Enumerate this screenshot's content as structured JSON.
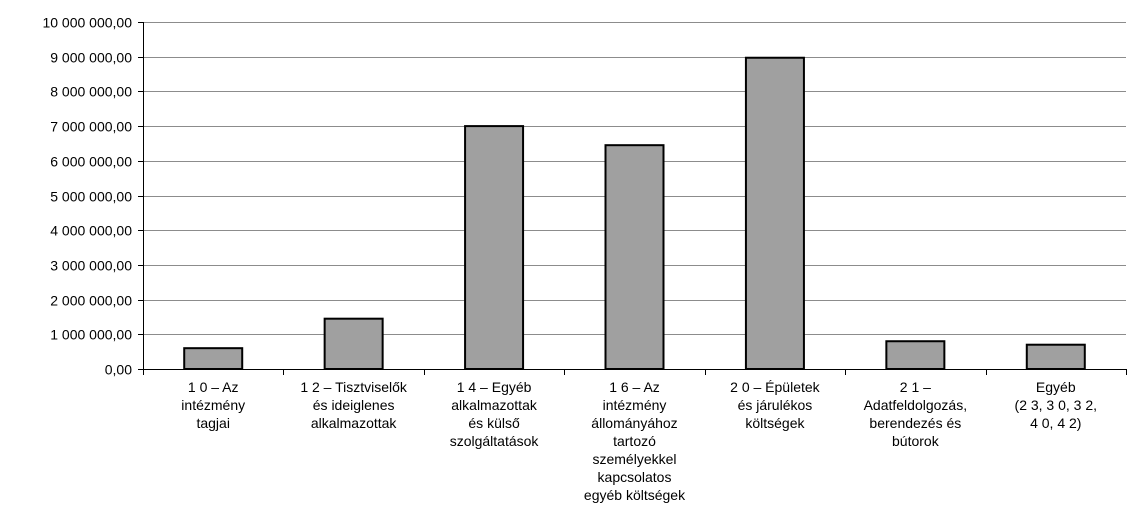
{
  "chart_data": {
    "type": "bar",
    "title": "",
    "xlabel": "",
    "ylabel": "",
    "ylim": [
      0,
      10000000
    ],
    "yticks": [
      0,
      1000000,
      2000000,
      3000000,
      4000000,
      5000000,
      6000000,
      7000000,
      8000000,
      9000000,
      10000000
    ],
    "ytick_labels": [
      "0,00",
      "1 000 000,00",
      "2 000 000,00",
      "3 000 000,00",
      "4 000 000,00",
      "5 000 000,00",
      "6 000 000,00",
      "7 000 000,00",
      "8 000 000,00",
      "9 000 000,00",
      "10 000 000,00"
    ],
    "grid": true,
    "bar_color": "#a0a0a0",
    "categories": [
      [
        "1 0 – Az",
        "intézmény",
        "tagjai"
      ],
      [
        "1 2 – Tisztviselők",
        "és ideiglenes",
        "alkalmazottak"
      ],
      [
        "1 4 – Egyéb",
        "alkalmazottak",
        "és külső",
        "szolgáltatások"
      ],
      [
        "1 6 – Az",
        "intézmény",
        "állományához",
        "tartozó",
        "személyekkel",
        "kapcsolatos",
        "egyéb költségek"
      ],
      [
        "2 0 – Épületek",
        "és járulékos",
        "költségek"
      ],
      [
        "2 1 –",
        "Adatfeldolgozás,",
        "berendezés és",
        "bútorok"
      ],
      [
        "Egyéb",
        "(2 3, 3 0, 3 2,",
        "4 0, 4 2)"
      ]
    ],
    "values": [
      600000,
      1450000,
      7000000,
      6450000,
      8970000,
      800000,
      700000
    ]
  }
}
